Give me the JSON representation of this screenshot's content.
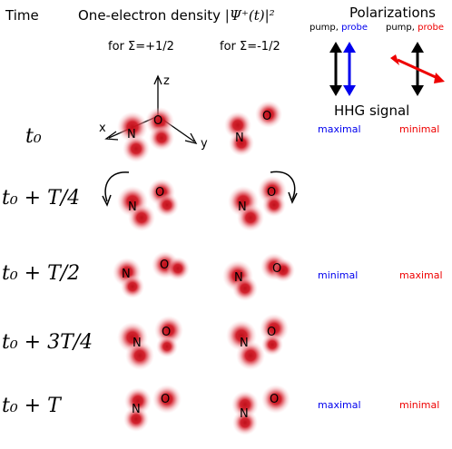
{
  "header": {
    "time": "Time",
    "density_prefix": "One-electron density ",
    "density_formula": "|Ψ⁺(t)|²",
    "polarizations": "Polarizations",
    "sigma_plus": "for Σ=+1/2",
    "sigma_minus": "for Σ=-1/2",
    "pump_probe_1": {
      "pump": "pump, ",
      "probe": "probe"
    },
    "pump_probe_2": {
      "pump": "pump, ",
      "probe": "probe"
    },
    "hhg_signal": "HHG signal"
  },
  "axes": {
    "x": "x",
    "y": "y",
    "z": "z"
  },
  "atoms": {
    "n": "N",
    "o": "O"
  },
  "rows": [
    {
      "label": "t₀",
      "signal_parallel": "maximal",
      "signal_crossed": "minimal"
    },
    {
      "label": "t₀ + T/4",
      "signal_parallel": "",
      "signal_crossed": ""
    },
    {
      "label": "t₀ + T/2",
      "signal_parallel": "minimal",
      "signal_crossed": "maximal"
    },
    {
      "label": "t₀ + 3T/4",
      "signal_parallel": "",
      "signal_crossed": ""
    },
    {
      "label": "t₀ + T",
      "signal_parallel": "maximal",
      "signal_crossed": "minimal"
    }
  ],
  "colors": {
    "blue": "#0000ee",
    "red": "#ee0000",
    "density": "#cc1020"
  }
}
